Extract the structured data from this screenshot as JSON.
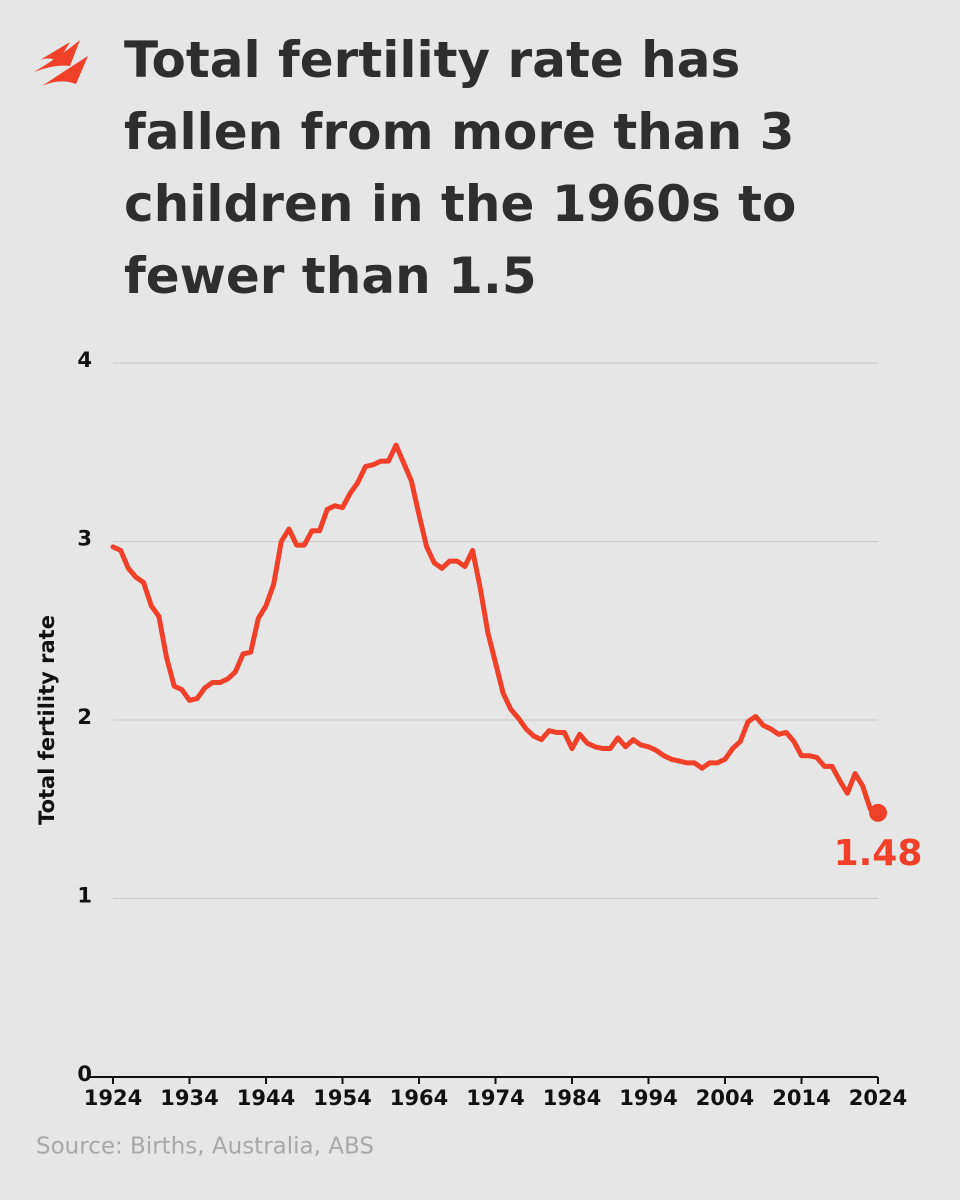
{
  "chart_data": {
    "type": "line",
    "title": [
      "Total fertility rate has",
      "fallen from more than 3",
      "children in the 1960s to",
      "fewer than 1.5"
    ],
    "y_label": "Total fertility rate",
    "source": "Source: Births, Australia, ABS",
    "x": [
      1924,
      1925,
      1926,
      1927,
      1928,
      1929,
      1930,
      1931,
      1932,
      1933,
      1934,
      1935,
      1936,
      1937,
      1938,
      1939,
      1940,
      1941,
      1942,
      1943,
      1944,
      1945,
      1946,
      1947,
      1948,
      1949,
      1950,
      1951,
      1952,
      1953,
      1954,
      1955,
      1956,
      1957,
      1958,
      1959,
      1960,
      1961,
      1962,
      1963,
      1964,
      1965,
      1966,
      1967,
      1968,
      1969,
      1970,
      1971,
      1972,
      1973,
      1974,
      1975,
      1976,
      1977,
      1978,
      1979,
      1980,
      1981,
      1982,
      1983,
      1984,
      1985,
      1986,
      1987,
      1988,
      1989,
      1990,
      1991,
      1992,
      1993,
      1994,
      1995,
      1996,
      1997,
      1998,
      1999,
      2000,
      2001,
      2002,
      2003,
      2004,
      2005,
      2006,
      2007,
      2008,
      2009,
      2010,
      2011,
      2012,
      2013,
      2014,
      2015,
      2016,
      2017,
      2018,
      2019,
      2020,
      2021,
      2022,
      2023,
      2024
    ],
    "series": [
      {
        "name": "Total fertility rate",
        "color": "#f0402a",
        "values": [
          2.97,
          2.95,
          2.85,
          2.8,
          2.77,
          2.64,
          2.58,
          2.35,
          2.19,
          2.17,
          2.11,
          2.12,
          2.18,
          2.21,
          2.21,
          2.23,
          2.27,
          2.37,
          2.38,
          2.57,
          2.64,
          2.76,
          3.0,
          3.07,
          2.98,
          2.98,
          3.06,
          3.06,
          3.18,
          3.2,
          3.19,
          3.27,
          3.33,
          3.42,
          3.43,
          3.45,
          3.45,
          3.54,
          3.44,
          3.34,
          3.15,
          2.97,
          2.88,
          2.85,
          2.89,
          2.89,
          2.86,
          2.95,
          2.74,
          2.49,
          2.32,
          2.15,
          2.06,
          2.01,
          1.95,
          1.91,
          1.89,
          1.94,
          1.93,
          1.93,
          1.84,
          1.92,
          1.87,
          1.85,
          1.84,
          1.84,
          1.9,
          1.85,
          1.89,
          1.86,
          1.85,
          1.83,
          1.8,
          1.78,
          1.77,
          1.76,
          1.76,
          1.73,
          1.76,
          1.76,
          1.78,
          1.84,
          1.88,
          1.99,
          2.02,
          1.97,
          1.95,
          1.92,
          1.93,
          1.88,
          1.8,
          1.8,
          1.79,
          1.74,
          1.74,
          1.66,
          1.59,
          1.7,
          1.63,
          1.5,
          1.48
        ]
      }
    ],
    "xlim": [
      1924,
      2024
    ],
    "xticks": [
      1924,
      1934,
      1944,
      1954,
      1964,
      1974,
      1984,
      1994,
      2004,
      2014,
      2024
    ],
    "ylim": [
      0,
      4
    ],
    "yticks": [
      0,
      1,
      2,
      3,
      4
    ],
    "grid": true
  }
}
